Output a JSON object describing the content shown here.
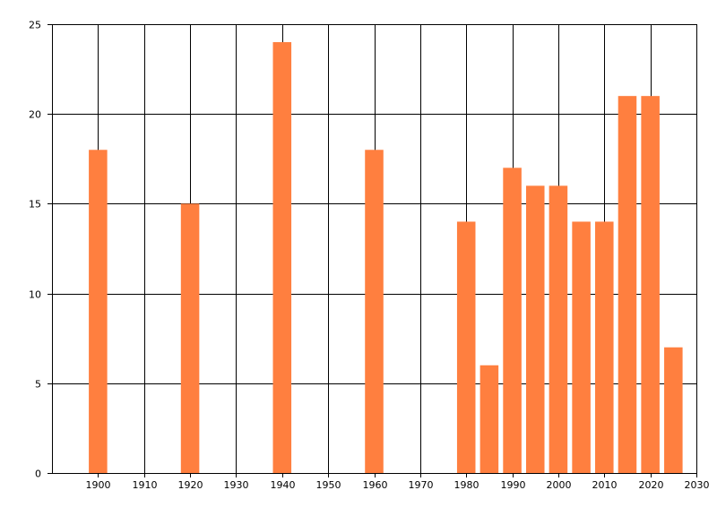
{
  "chart_data": {
    "type": "bar",
    "title": "",
    "xlabel": "",
    "ylabel": "",
    "x": [
      1900,
      1920,
      1940,
      1960,
      1980,
      1985,
      1990,
      1995,
      2000,
      2005,
      2010,
      2015,
      2020,
      2025
    ],
    "values": [
      18,
      15,
      24,
      18,
      14,
      6,
      17,
      16,
      16,
      14,
      14,
      21,
      21,
      7
    ],
    "bar_width_years": 4,
    "xlim": [
      1890,
      2030
    ],
    "ylim": [
      0,
      25
    ],
    "x_ticks": [
      1900,
      1910,
      1920,
      1930,
      1940,
      1950,
      1960,
      1970,
      1980,
      1990,
      2000,
      2010,
      2020,
      2030
    ],
    "y_ticks": [
      0,
      5,
      10,
      15,
      20,
      25
    ],
    "grid": true,
    "legend": "none",
    "bar_color": "#ff7f3f",
    "grid_color": "#000000"
  }
}
